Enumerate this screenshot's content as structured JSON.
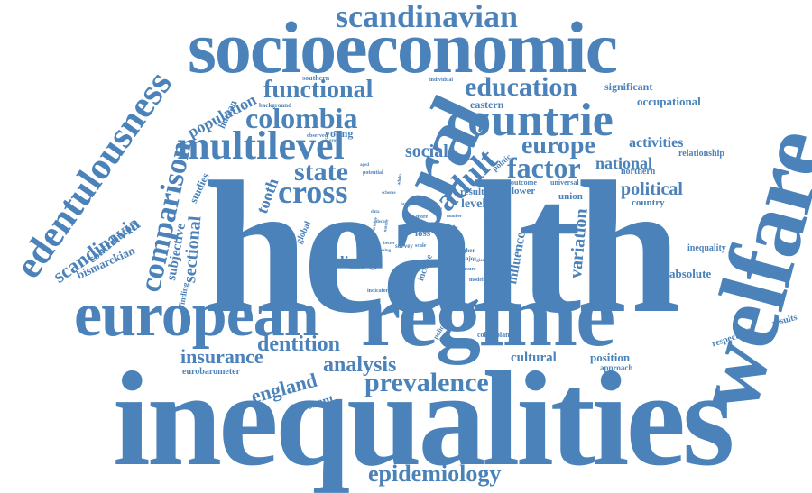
{
  "word_color": "#4a82b9",
  "background": "#ffffff",
  "words": [
    "health",
    "inequalities",
    "regime",
    "welfare",
    "socioeconomic",
    "european",
    "oral",
    "countrie",
    "multilevel",
    "scandinavian",
    "edentulousness",
    "comparison",
    "colombia",
    "functional",
    "education",
    "adult",
    "cross",
    "state",
    "factor",
    "europe",
    "social",
    "prevalence",
    "analysis",
    "dentition",
    "epidemiology",
    "insurance",
    "england",
    "scandinavia",
    "political",
    "national",
    "activities",
    "living",
    "variation",
    "influence",
    "population",
    "tooth",
    "sectional",
    "subjective",
    "contributor",
    "bismarckian",
    "cultural",
    "position",
    "absolute",
    "inequality",
    "different",
    "eurobarometer",
    "human",
    "studies",
    "significant",
    "occupational",
    "eastern",
    "young",
    "union",
    "country",
    "northern",
    "relationship",
    "respectively",
    "results",
    "approach",
    "lower",
    "result",
    "level",
    "loss",
    "impact",
    "income",
    "global",
    "finding",
    "politic",
    "outcome",
    "universal",
    "southern",
    "background",
    "observed",
    "individual",
    "potential",
    "scheme",
    "larger",
    "more",
    "higher",
    "major",
    "measure",
    "indicator",
    "matter",
    "policies",
    "colombian",
    "model",
    "survey",
    "scale",
    "missing",
    "better",
    "decay",
    "variable",
    "nature",
    "stage",
    "society",
    "estimate",
    "sample",
    "number",
    "gradient",
    "data",
    "across",
    "regions",
    "adults",
    "aged",
    "group"
  ]
}
